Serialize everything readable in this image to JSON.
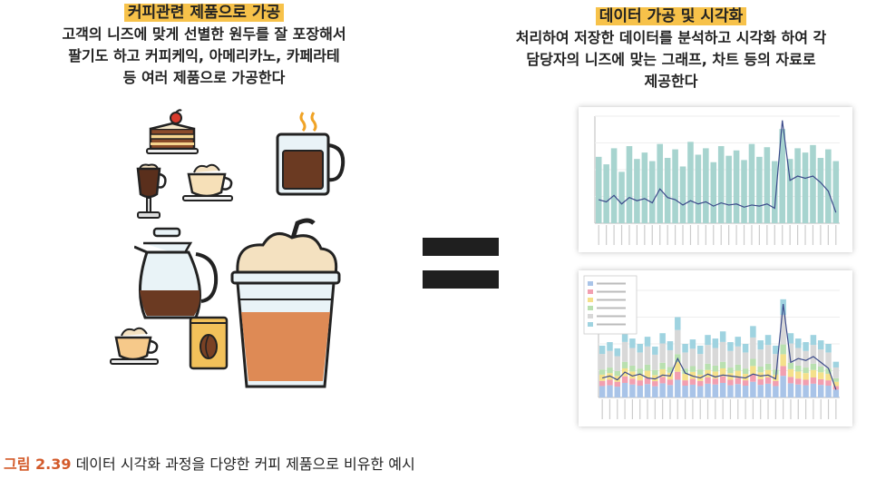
{
  "left": {
    "title": "커피관련 제품으로 가공",
    "lines": [
      "고객의 니즈에 맞게 선별한 원두를 잘 포장해서",
      "팔기도 하고 커피케익, 아메리카노, 카페라테",
      "등 여러 제품으로 가공한다"
    ],
    "items": [
      "cake-slice",
      "espresso-glass",
      "cappuccino-cup",
      "coffee-mug",
      "coffee-pot",
      "latte-cup",
      "coffee-bean-bag",
      "iced-coffee"
    ]
  },
  "right": {
    "title": "데이터 가공 및 시각화",
    "lines": [
      "처리하여 저장한 데이터를 분석하고 시각화 하여 각",
      "담당자의 니즈에 맞는 그래프, 차트 등의 자료로",
      "제공한다"
    ]
  },
  "equals": {
    "icon": "equals-icon"
  },
  "colors": {
    "highlight": "#f7c24a",
    "teal_bar": "#a7d4cf",
    "line": "#3b4a8a",
    "caption_label": "#d35a2a"
  },
  "chart_data": [
    {
      "type": "bar",
      "values": [
        62,
        55,
        70,
        48,
        72,
        60,
        66,
        58,
        74,
        61,
        69,
        53,
        76,
        64,
        70,
        57,
        72,
        63,
        68,
        59,
        74,
        62,
        71,
        58,
        88,
        60,
        70,
        66,
        73,
        61,
        69,
        58
      ],
      "line_values": [
        22,
        20,
        26,
        18,
        24,
        21,
        23,
        19,
        32,
        24,
        22,
        17,
        21,
        18,
        20,
        16,
        19,
        17,
        18,
        15,
        17,
        16,
        18,
        14,
        96,
        40,
        44,
        42,
        44,
        38,
        30,
        10
      ]
    },
    {
      "type": "bar",
      "stacked": true,
      "series_colors": [
        "#a9c4e8",
        "#f29fb0",
        "#f4e08a",
        "#b9e0b0",
        "#d8d8d8",
        "#9fd3e0"
      ],
      "totals": [
        58,
        62,
        55,
        74,
        66,
        60,
        68,
        57,
        72,
        63,
        90,
        60,
        65,
        58,
        70,
        66,
        74,
        62,
        68,
        60,
        80,
        64,
        70,
        58,
        110,
        72,
        66,
        62,
        70,
        64,
        60,
        40
      ],
      "line_values": [
        20,
        22,
        18,
        26,
        22,
        24,
        20,
        19,
        23,
        22,
        40,
        25,
        22,
        20,
        24,
        21,
        23,
        22,
        21,
        20,
        24,
        22,
        23,
        19,
        96,
        36,
        40,
        38,
        42,
        36,
        30,
        8
      ]
    }
  ],
  "caption": {
    "label": "그림 2.39",
    "text": " 데이터 시각화 과정을 다양한 커피 제품으로 비유한 예시"
  }
}
